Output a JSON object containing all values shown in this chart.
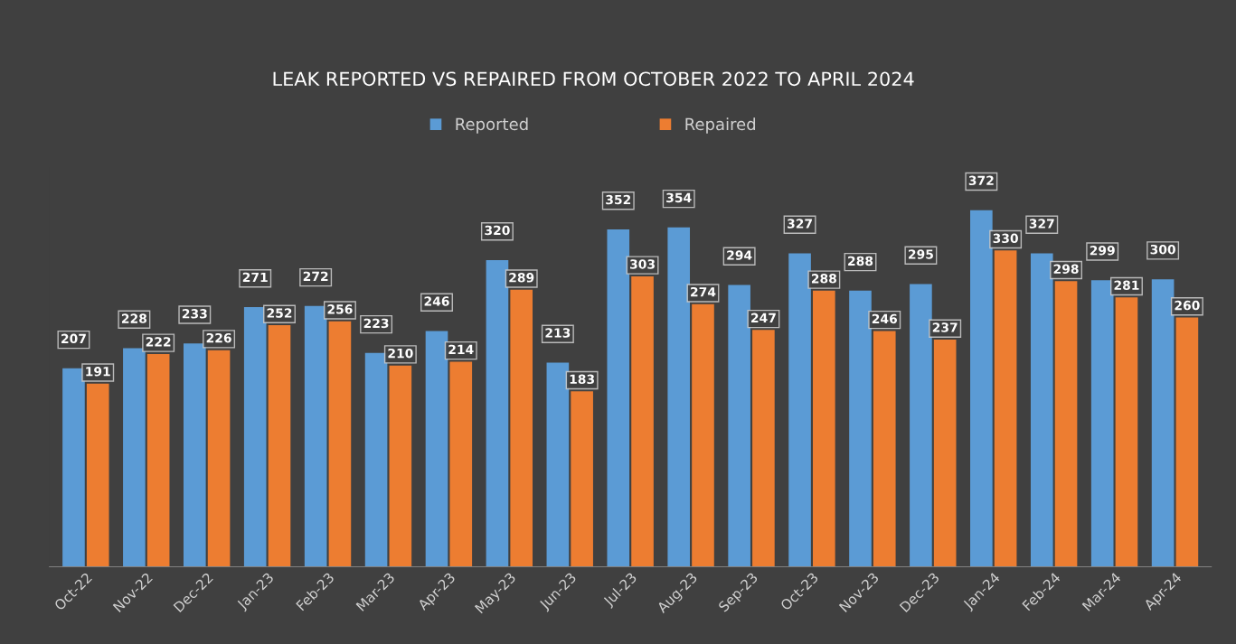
{
  "chart_data": {
    "type": "bar",
    "title": "LEAK REPORTED VS REPAIRED FROM OCTOBER 2022 TO APRIL 2024",
    "categories": [
      "Oct-22",
      "Nov-22",
      "Dec-22",
      "Jan-23",
      "Feb-23",
      "Mar-23",
      "Apr-23",
      "May-23",
      "Jun-23",
      "Jul-23",
      "Aug-23",
      "Sep-23",
      "Oct-23",
      "Nov-23",
      "Dec-23",
      "Jan-24",
      "Feb-24",
      "Mar-24",
      "Apr-24"
    ],
    "series": [
      {
        "name": "Reported",
        "color": "#5b9bd5",
        "values": [
          207,
          228,
          233,
          271,
          272,
          223,
          246,
          320,
          213,
          352,
          354,
          294,
          327,
          288,
          295,
          372,
          327,
          299,
          300
        ]
      },
      {
        "name": "Repaired",
        "color": "#ed7d31",
        "values": [
          191,
          222,
          226,
          252,
          256,
          210,
          214,
          289,
          183,
          303,
          274,
          247,
          288,
          246,
          237,
          330,
          298,
          281,
          260
        ]
      }
    ],
    "data_labels": true,
    "legend": "top",
    "grid": false,
    "tick_labels": "x"
  }
}
